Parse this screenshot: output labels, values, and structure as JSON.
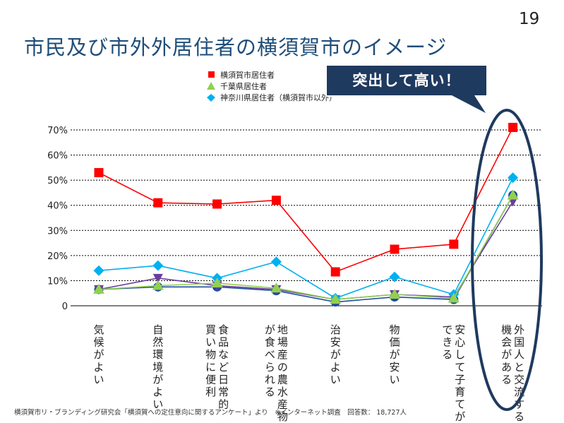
{
  "slide": {
    "page_number": "19",
    "title": "市民及び市外外居住者の横須賀市のイメージ",
    "callout": "突出して高い！",
    "footer": "横須賀市リ・ブランディング研究会「横須賀への定住意向に関するアンケート」より　※インターネット調査　回答数： 18,727人"
  },
  "colors": {
    "title": "#1f4e79",
    "callout_bg": "#1f3a5f",
    "ellipse": "#1f3a5f"
  },
  "chart_data": {
    "type": "line",
    "categories": [
      "気候がよい",
      "自然環境がよい",
      "食品など日常的な買い物に便利",
      "地場産の農水産物が食べられる",
      "治安がよい",
      "物価が安い",
      "安心して子育てができる",
      "外国人と交流する機会がある"
    ],
    "category_lines": [
      [
        "気候がよい"
      ],
      [
        "自然環境がよい"
      ],
      [
        "食品など日常的",
        "買い物に便利"
      ],
      [
        "地場産の農水産物",
        "が食べられる"
      ],
      [
        "治安がよい"
      ],
      [
        "物価が安い"
      ],
      [
        "安心して子育てが",
        "できる"
      ],
      [
        "外国人と交流する",
        "機会がある"
      ]
    ],
    "ylim": [
      0,
      70
    ],
    "yticks": [
      0,
      10,
      20,
      30,
      40,
      50,
      60,
      70
    ],
    "ytick_labels": [
      "0",
      "10%",
      "20%",
      "30%",
      "40%",
      "50%",
      "60%",
      "70%"
    ],
    "series": [
      {
        "name": "横須賀市居住者",
        "color": "#ff0000",
        "marker": "square",
        "values": [
          53,
          41,
          40.5,
          42,
          13.5,
          22.5,
          24.5,
          71
        ],
        "in_legend": true
      },
      {
        "name": "",
        "color": "#1f4e9c",
        "marker": "circle",
        "values": [
          6.5,
          7.5,
          7.5,
          6,
          1.5,
          3.5,
          2.5,
          44
        ],
        "in_legend": false
      },
      {
        "name": "",
        "color": "#6a3d9a",
        "marker": "triangle-down",
        "values": [
          6.5,
          11,
          8,
          6.5,
          2.5,
          4.5,
          3.5,
          41.5
        ],
        "in_legend": false
      },
      {
        "name": "千葉県居住者",
        "color": "#92d050",
        "marker": "triangle",
        "values": [
          6.5,
          8,
          9,
          7,
          2.5,
          4.5,
          3,
          44
        ],
        "in_legend": true
      },
      {
        "name": "神奈川県居住者（横須賀市以外）",
        "color": "#00b0f0",
        "marker": "diamond",
        "values": [
          14,
          16,
          11,
          17.5,
          3,
          11.5,
          4.5,
          51
        ],
        "in_legend": true
      }
    ],
    "grid": true,
    "legend_position": "top-center"
  }
}
